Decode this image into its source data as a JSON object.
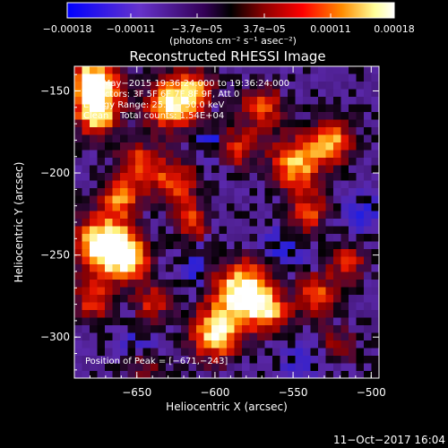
{
  "chart_data": {
    "type": "heatmap",
    "title": "Reconstructed RHESSI Image",
    "xlabel": "Heliocentric X (arcsec)",
    "ylabel": "Heliocentric Y (arcsec)",
    "xlim": [
      -690,
      -495
    ],
    "ylim": [
      -325,
      -135
    ],
    "x_ticks": [
      {
        "value": -650,
        "label": "−650"
      },
      {
        "value": -600,
        "label": "−600"
      },
      {
        "value": -550,
        "label": "−550"
      },
      {
        "value": -500,
        "label": "−500"
      }
    ],
    "y_ticks": [
      {
        "value": -150,
        "label": "−150"
      },
      {
        "value": -200,
        "label": "−200"
      },
      {
        "value": -250,
        "label": "−250"
      },
      {
        "value": -300,
        "label": "−300"
      }
    ],
    "colorbar": {
      "range": [
        -0.00018,
        0.00018
      ],
      "tick_values": [
        -0.00018,
        -0.00011,
        -3.7e-05,
        3.7e-05,
        0.00011,
        0.00018
      ],
      "tick_labels": [
        "−0.00018",
        "−0.00011",
        "−3.7e−05",
        "3.7e−05",
        "0.00011",
        "0.00018"
      ],
      "unit_label": "(photons cm⁻² s⁻¹ asec⁻²)",
      "colors": [
        "#0000ff",
        "#6633cc",
        "#330055",
        "#000000",
        "#8b0000",
        "#ff0000",
        "#ff8c00",
        "#ffff99",
        "#ffffff"
      ]
    },
    "annotations": [
      "3−May−2015 19:36:24.000 to 19:36:24.000",
      "Detectors: 3F 5F 6F 7F 8F 9F, Att 0",
      "Energy Range: 25.0 − 50.0 keV",
      "Clean    Total counts: 1.54E+04"
    ],
    "peak_label": "Position of Peak = [−671,−243]",
    "peak_position": [
      -671,
      -243
    ],
    "blobs": [
      {
        "x": -678,
        "y": -145,
        "sigma": 12,
        "amp": 1.0
      },
      {
        "x": -675,
        "y": -165,
        "sigma": 10,
        "amp": 0.75
      },
      {
        "x": -672,
        "y": -243,
        "sigma": 13,
        "amp": 1.0
      },
      {
        "x": -655,
        "y": -252,
        "sigma": 10,
        "amp": 0.8
      },
      {
        "x": -678,
        "y": -278,
        "sigma": 9,
        "amp": 0.55
      },
      {
        "x": -660,
        "y": -215,
        "sigma": 9,
        "amp": 0.6
      },
      {
        "x": -648,
        "y": -195,
        "sigma": 10,
        "amp": 0.6
      },
      {
        "x": -628,
        "y": -158,
        "sigma": 12,
        "amp": 0.85
      },
      {
        "x": -612,
        "y": -150,
        "sigma": 9,
        "amp": 0.55
      },
      {
        "x": -625,
        "y": -205,
        "sigma": 10,
        "amp": 0.6
      },
      {
        "x": -615,
        "y": -230,
        "sigma": 9,
        "amp": 0.55
      },
      {
        "x": -640,
        "y": -280,
        "sigma": 9,
        "amp": 0.5
      },
      {
        "x": -600,
        "y": -298,
        "sigma": 12,
        "amp": 0.85
      },
      {
        "x": -582,
        "y": -272,
        "sigma": 13,
        "amp": 1.0
      },
      {
        "x": -565,
        "y": -285,
        "sigma": 9,
        "amp": 0.6
      },
      {
        "x": -585,
        "y": -185,
        "sigma": 9,
        "amp": 0.55
      },
      {
        "x": -570,
        "y": -160,
        "sigma": 10,
        "amp": 0.6
      },
      {
        "x": -548,
        "y": -195,
        "sigma": 12,
        "amp": 0.8
      },
      {
        "x": -525,
        "y": -180,
        "sigma": 10,
        "amp": 0.7
      },
      {
        "x": -540,
        "y": -225,
        "sigma": 9,
        "amp": 0.55
      },
      {
        "x": -535,
        "y": -275,
        "sigma": 10,
        "amp": 0.6
      },
      {
        "x": -515,
        "y": -255,
        "sigma": 9,
        "amp": 0.5
      },
      {
        "x": -520,
        "y": -305,
        "sigma": 9,
        "amp": 0.4
      },
      {
        "x": -645,
        "y": -320,
        "sigma": 8,
        "amp": 0.35
      }
    ],
    "negative_blobs": [
      {
        "x": -600,
        "y": -178,
        "sigma": 10,
        "amp": 0.5
      },
      {
        "x": -610,
        "y": -258,
        "sigma": 9,
        "amp": 0.45
      },
      {
        "x": -555,
        "y": -245,
        "sigma": 10,
        "amp": 0.45
      },
      {
        "x": -505,
        "y": -225,
        "sigma": 9,
        "amp": 0.4
      },
      {
        "x": -650,
        "y": -300,
        "sigma": 8,
        "amp": 0.35
      },
      {
        "x": -545,
        "y": -315,
        "sigma": 9,
        "amp": 0.4
      }
    ]
  },
  "footer": {
    "timestamp": "11−Oct−2017 16:04"
  }
}
